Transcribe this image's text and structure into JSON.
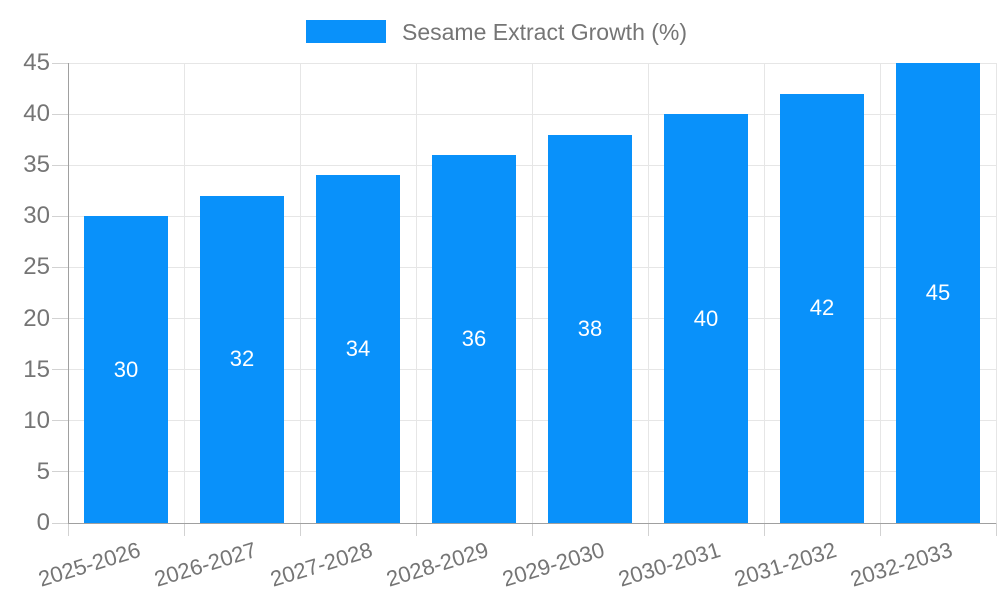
{
  "legend": {
    "label": "Sesame Extract Growth (%)"
  },
  "chart_data": {
    "type": "bar",
    "title": "Sesame Extract Growth (%)",
    "categories": [
      "2025-2026",
      "2026-2027",
      "2027-2028",
      "2028-2029",
      "2029-2030",
      "2030-2031",
      "2031-2032",
      "2032-2033"
    ],
    "series": [
      {
        "name": "Sesame Extract Growth (%)",
        "values": [
          30,
          32,
          34,
          36,
          38,
          40,
          42,
          45
        ]
      }
    ],
    "bar_value_labels": [
      "30",
      "32",
      "34",
      "36",
      "38",
      "40",
      "42",
      "45"
    ],
    "xlabel": "",
    "ylabel": "",
    "ylim": [
      0,
      45
    ],
    "ytick_step": 5,
    "ytick_labels": [
      "0",
      "5",
      "10",
      "15",
      "20",
      "25",
      "30",
      "35",
      "40",
      "45"
    ],
    "grid": true,
    "legend_position": "top-center",
    "colors": {
      "bar": "#0991fa",
      "axis_text": "#757575",
      "bar_label_text": "#ffffff",
      "gridline": "#e6e6e6",
      "axis_line": "#a0a0a0",
      "tick": "#d2d2d2",
      "background": "#ffffff"
    }
  }
}
